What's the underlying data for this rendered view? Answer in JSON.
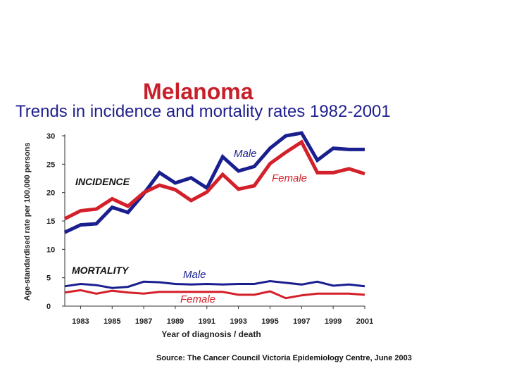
{
  "header": {
    "title": "Melanoma",
    "subtitle": "Trends in incidence and mortality rates 1982-2001"
  },
  "source": "Source: The Cancer Council Victoria Epidemiology Centre, June 2003",
  "colors": {
    "male": "#1a1f8f",
    "female": "#d4202a",
    "title": "#c8202a",
    "subtitle": "#1f1f8f"
  },
  "chart_data": {
    "type": "line",
    "title": "Trends in incidence and mortality rates 1982-2001",
    "xlabel": "Year of diagnosis / death",
    "ylabel": "Age-standardised rate per 100,000 persons",
    "x": [
      1982,
      1983,
      1984,
      1985,
      1986,
      1987,
      1988,
      1989,
      1990,
      1991,
      1992,
      1993,
      1994,
      1995,
      1996,
      1997,
      1998,
      1999,
      2000,
      2001
    ],
    "xticks": [
      "1983",
      "1985",
      "1987",
      "1989",
      "1991",
      "1993",
      "1995",
      "1997",
      "1999",
      "2001"
    ],
    "yticks": [
      "0",
      "5",
      "10",
      "15",
      "20",
      "25",
      "30"
    ],
    "xlim": [
      1982,
      2001
    ],
    "ylim": [
      0,
      30
    ],
    "series": [
      {
        "name": "Male",
        "group": "INCIDENCE",
        "color": "#1a1f8f",
        "values": [
          13.0,
          14.3,
          14.5,
          17.4,
          16.5,
          19.8,
          23.5,
          21.7,
          22.6,
          20.8,
          26.3,
          23.8,
          24.6,
          27.8,
          30.0,
          30.5,
          25.7,
          27.8,
          27.6,
          27.6
        ]
      },
      {
        "name": "Female",
        "group": "INCIDENCE",
        "color": "#d4202a",
        "values": [
          15.4,
          16.8,
          17.1,
          18.9,
          17.6,
          20.0,
          21.3,
          20.5,
          18.6,
          20.1,
          23.2,
          20.6,
          21.2,
          25.1,
          27.1,
          28.9,
          23.5,
          23.5,
          24.2,
          23.3
        ]
      },
      {
        "name": "Male",
        "group": "MORTALITY",
        "color": "#1a1f8f",
        "values": [
          3.5,
          3.9,
          3.7,
          3.2,
          3.4,
          4.3,
          4.2,
          3.9,
          3.8,
          3.9,
          3.8,
          3.9,
          3.9,
          4.4,
          4.1,
          3.8,
          4.3,
          3.6,
          3.8,
          3.5
        ]
      },
      {
        "name": "Female",
        "group": "MORTALITY",
        "color": "#d4202a",
        "values": [
          2.4,
          2.8,
          2.2,
          2.7,
          2.4,
          2.2,
          2.5,
          2.5,
          2.5,
          2.5,
          2.5,
          2.0,
          2.0,
          2.6,
          1.4,
          1.9,
          2.2,
          2.2,
          2.2,
          2.0
        ]
      }
    ],
    "annotations": {
      "incidence": "INCIDENCE",
      "mortality": "MORTALITY",
      "inc_male": "Male",
      "inc_female": "Female",
      "mort_male": "Male",
      "mort_female": "Female"
    }
  }
}
